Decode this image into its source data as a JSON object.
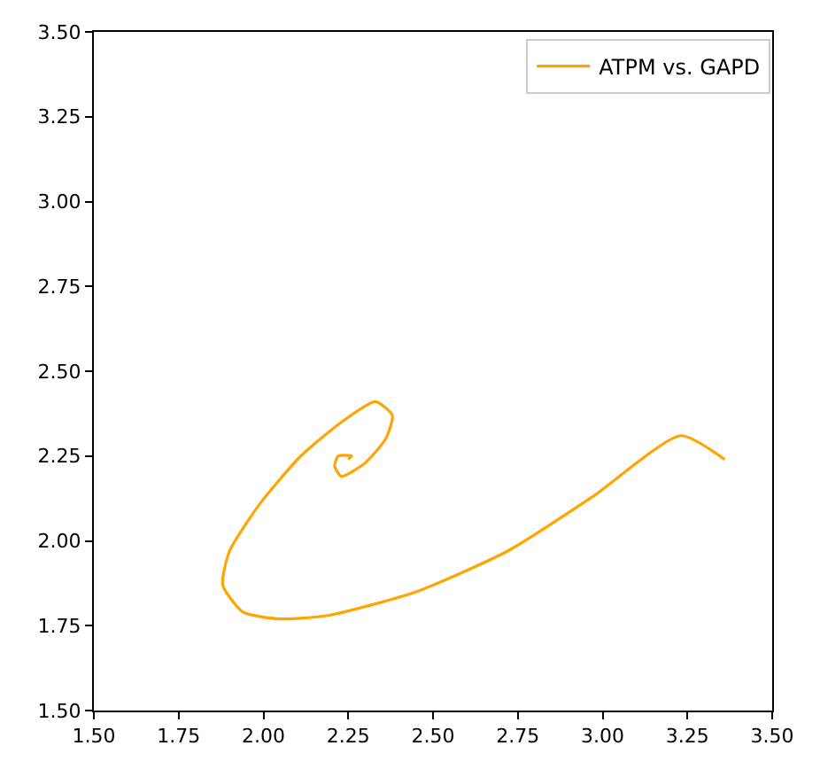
{
  "chart_data": {
    "type": "line",
    "legend": "top right",
    "grid": false,
    "marker": "none",
    "line_style": "solid",
    "xlim": [
      1.5,
      3.5
    ],
    "ylim": [
      1.5,
      3.5
    ],
    "xticks": [
      {
        "value": 1.5,
        "label": "1.50"
      },
      {
        "value": 1.75,
        "label": "1.75"
      },
      {
        "value": 2.0,
        "label": "2.00"
      },
      {
        "value": 2.25,
        "label": "2.25"
      },
      {
        "value": 2.5,
        "label": "2.50"
      },
      {
        "value": 2.75,
        "label": "2.75"
      },
      {
        "value": 3.0,
        "label": "3.00"
      },
      {
        "value": 3.25,
        "label": "3.25"
      },
      {
        "value": 3.5,
        "label": "3.50"
      }
    ],
    "yticks": [
      {
        "value": 1.5,
        "label": "1.50"
      },
      {
        "value": 1.75,
        "label": "1.75"
      },
      {
        "value": 2.0,
        "label": "2.00"
      },
      {
        "value": 2.25,
        "label": "2.25"
      },
      {
        "value": 2.5,
        "label": "2.50"
      },
      {
        "value": 2.75,
        "label": "2.75"
      },
      {
        "value": 3.0,
        "label": "3.00"
      },
      {
        "value": 3.25,
        "label": "3.25"
      },
      {
        "value": 3.5,
        "label": "3.50"
      }
    ],
    "series": [
      {
        "name": "ATPM vs. GAPD",
        "color": "#ffa500",
        "x": [
          3.36,
          3.23,
          2.97,
          2.72,
          2.45,
          2.19,
          2.05,
          1.94,
          1.88,
          1.9,
          1.99,
          2.11,
          2.23,
          2.33,
          2.38,
          2.36,
          2.3,
          2.23,
          2.21,
          2.22,
          2.26,
          2.25
        ],
        "values": [
          2.24,
          2.31,
          2.13,
          1.97,
          1.85,
          1.78,
          1.77,
          1.79,
          1.87,
          1.97,
          2.11,
          2.25,
          2.35,
          2.41,
          2.37,
          2.3,
          2.23,
          2.19,
          2.22,
          2.25,
          2.25,
          2.24
        ]
      }
    ]
  }
}
